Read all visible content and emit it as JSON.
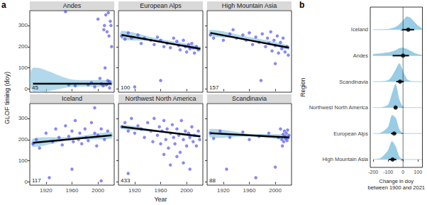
{
  "chart_data": [
    {
      "type": "scatter",
      "label": "a",
      "xlabel": "Year",
      "ylabel": "GLOF timing (doy)",
      "xlim": [
        1895,
        2025
      ],
      "xticks": [
        1920,
        1960,
        2000
      ],
      "ylim": [
        -15,
        370
      ],
      "yticks": [
        0,
        100,
        200,
        300
      ],
      "color": "#4040e8",
      "panels": [
        {
          "title": "Andes",
          "n": 45,
          "x": [
            1950,
            1955,
            1965,
            1985,
            1990,
            1995,
            2000,
            2003,
            2005,
            2008,
            2010,
            2012,
            2013,
            2014,
            2015,
            2016,
            2017,
            2018,
            2019,
            2020,
            2021,
            2011,
            2009,
            2018
          ],
          "values": [
            365,
            20,
            15,
            20,
            30,
            10,
            330,
            50,
            25,
            15,
            300,
            350,
            20,
            270,
            40,
            360,
            250,
            35,
            320,
            300,
            200,
            100,
            280,
            5
          ],
          "fit": {
            "color": "#000000",
            "x": [
              1900,
              2021
            ],
            "values": [
              25,
              25
            ]
          },
          "band": {
            "color": "#87c3e0",
            "x": [
              1900,
              1960,
              2021
            ],
            "lower": [
              -10,
              10,
              15
            ],
            "upper": [
              100,
              45,
              40
            ]
          }
        },
        {
          "title": "European Alps",
          "n": 100,
          "x": [
            1900,
            1905,
            1910,
            1915,
            1925,
            1930,
            1935,
            1945,
            1950,
            1955,
            1960,
            1965,
            1970,
            1975,
            1980,
            1985,
            1988,
            1990,
            1995,
            1998,
            2000,
            2003,
            2005,
            2008,
            2010,
            2012,
            2015,
            2018,
            1960,
            1920
          ],
          "values": [
            250,
            235,
            265,
            240,
            255,
            215,
            240,
            230,
            210,
            245,
            230,
            200,
            215,
            195,
            240,
            225,
            205,
            185,
            230,
            200,
            175,
            210,
            190,
            215,
            195,
            170,
            200,
            185,
            40,
            10
          ],
          "fit": {
            "color": "#000000",
            "x": [
              1900,
              2021
            ],
            "values": [
              255,
              190
            ]
          },
          "band": {
            "color": "#87c3e0",
            "x": [
              1900,
              1960,
              2021
            ],
            "lower": [
              235,
              225,
              180
            ],
            "upper": [
              275,
              235,
              200
            ]
          }
        },
        {
          "title": "High Mountain Asia",
          "n": 157,
          "x": [
            1900,
            1905,
            1920,
            1930,
            1935,
            1940,
            1950,
            1955,
            1960,
            1965,
            1970,
            1975,
            1980,
            1985,
            1988,
            1990,
            1993,
            1995,
            1998,
            2000,
            2003,
            2005,
            2008,
            2010,
            2012,
            2015,
            2018,
            2020,
            1978,
            2000
          ],
          "values": [
            255,
            240,
            230,
            260,
            280,
            240,
            255,
            230,
            265,
            210,
            245,
            220,
            260,
            200,
            240,
            215,
            270,
            180,
            230,
            205,
            250,
            170,
            220,
            190,
            240,
            175,
            200,
            160,
            40,
            120
          ],
          "fit": {
            "color": "#000000",
            "x": [
              1900,
              2021
            ],
            "values": [
              265,
              195
            ]
          },
          "band": {
            "color": "#87c3e0",
            "x": [
              1900,
              1960,
              2021
            ],
            "lower": [
              250,
              235,
              185
            ],
            "upper": [
              280,
              245,
              205
            ]
          }
        },
        {
          "title": "Iceland",
          "n": 117,
          "x": [
            1900,
            1905,
            1910,
            1920,
            1930,
            1935,
            1940,
            1945,
            1950,
            1955,
            1960,
            1962,
            1965,
            1970,
            1972,
            1975,
            1980,
            1982,
            1985,
            1990,
            1995,
            1998,
            2000,
            2005,
            2010,
            2015,
            1925,
            1960,
            1995,
            2005
          ],
          "values": [
            180,
            200,
            160,
            230,
            190,
            250,
            210,
            175,
            265,
            215,
            240,
            190,
            290,
            200,
            230,
            180,
            250,
            210,
            195,
            280,
            230,
            170,
            220,
            250,
            200,
            240,
            20,
            60,
            350,
            5
          ],
          "fit": {
            "color": "#000000",
            "x": [
              1900,
              2021
            ],
            "values": [
              185,
              220
            ]
          },
          "band": {
            "color": "#87c3e0",
            "x": [
              1900,
              1960,
              2021
            ],
            "lower": [
              165,
              200,
              205
            ],
            "upper": [
              205,
              212,
              235
            ]
          }
        },
        {
          "title": "Northwest North America",
          "n": 433,
          "x": [
            1900,
            1905,
            1910,
            1915,
            1920,
            1925,
            1930,
            1935,
            1940,
            1945,
            1948,
            1950,
            1955,
            1958,
            1960,
            1962,
            1965,
            1968,
            1970,
            1972,
            1975,
            1978,
            1980,
            1982,
            1985,
            1988,
            1990,
            1992,
            1995,
            1998,
            2000,
            2003,
            2005,
            2008,
            2010,
            2012,
            2015,
            2018,
            2020,
            1910,
            1975,
            1995,
            2005,
            1985,
            1965
          ],
          "values": [
            260,
            280,
            240,
            300,
            230,
            265,
            250,
            210,
            280,
            240,
            190,
            300,
            220,
            260,
            180,
            240,
            290,
            200,
            250,
            160,
            230,
            270,
            210,
            180,
            250,
            220,
            140,
            290,
            200,
            240,
            170,
            230,
            210,
            260,
            190,
            220,
            170,
            240,
            200,
            40,
            80,
            90,
            60,
            120,
            130
          ],
          "fit": {
            "color": "#000000",
            "x": [
              1900,
              2021
            ],
            "values": [
              260,
              215
            ]
          },
          "band": {
            "color": "#87c3e0",
            "x": [
              1900,
              1960,
              2021
            ],
            "lower": [
              250,
              235,
              210
            ],
            "upper": [
              270,
              242,
              222
            ]
          }
        },
        {
          "title": "Scandinavia",
          "n": 88,
          "x": [
            1900,
            1905,
            1915,
            1930,
            1950,
            1960,
            1970,
            1975,
            1990,
            2005,
            2008,
            2010,
            2012,
            2013,
            2014,
            2015,
            2016,
            2017,
            2018,
            2019,
            2020,
            2021,
            1925,
            2000,
            2011
          ],
          "values": [
            230,
            205,
            240,
            210,
            235,
            200,
            20,
            215,
            230,
            210,
            250,
            200,
            225,
            190,
            240,
            215,
            205,
            230,
            195,
            245,
            210,
            220,
            60,
            70,
            170
          ],
          "fit": {
            "color": "#000000",
            "x": [
              1900,
              2021
            ],
            "values": [
              230,
              210
            ]
          },
          "band": {
            "color": "#87c3e0",
            "x": [
              1900,
              1960,
              2021
            ],
            "lower": [
              210,
              215,
              200
            ],
            "upper": [
              250,
              228,
              222
            ]
          }
        }
      ]
    },
    {
      "type": "violin",
      "label": "b",
      "orientation": "horizontal",
      "xlabel": "Change in doy\nbetween 1900 and 2021",
      "ylabel": "Region",
      "xlim": [
        -220,
        130
      ],
      "xticks": [
        -200,
        -100,
        0,
        100
      ],
      "reference_x": 0,
      "color": "#87c3e0",
      "categories": [
        "Iceland",
        "Andes",
        "Scandinavia",
        "Northwest North America",
        "European Alps",
        "High Mountain Asia"
      ],
      "values": [
        35,
        0,
        -20,
        -50,
        -60,
        -70
      ],
      "error_low": [
        -5,
        -70,
        -45,
        -60,
        -80,
        -95
      ],
      "error_high": [
        75,
        40,
        5,
        -40,
        -45,
        -45
      ],
      "density_x": [
        -200,
        -150,
        -100,
        -75,
        -50,
        -25,
        0,
        25,
        50,
        75,
        100,
        125
      ],
      "density": [
        [
          0,
          0,
          0.02,
          0.05,
          0.1,
          0.2,
          0.35,
          0.5,
          0.45,
          0.3,
          0.15,
          0.05
        ],
        [
          0.05,
          0.08,
          0.12,
          0.15,
          0.2,
          0.28,
          0.3,
          0.25,
          0.18,
          0.1,
          0.05,
          0.02
        ],
        [
          0,
          0,
          0.05,
          0.2,
          0.45,
          0.7,
          0.4,
          0.1,
          0.02,
          0,
          0,
          0
        ],
        [
          0,
          0,
          0.1,
          0.5,
          0.9,
          0.3,
          0.03,
          0,
          0,
          0,
          0,
          0
        ],
        [
          0,
          0.02,
          0.25,
          0.7,
          0.6,
          0.15,
          0.02,
          0,
          0,
          0,
          0,
          0
        ],
        [
          0,
          0.05,
          0.35,
          0.7,
          0.5,
          0.1,
          0.01,
          0,
          0,
          0,
          0,
          0
        ]
      ]
    }
  ]
}
